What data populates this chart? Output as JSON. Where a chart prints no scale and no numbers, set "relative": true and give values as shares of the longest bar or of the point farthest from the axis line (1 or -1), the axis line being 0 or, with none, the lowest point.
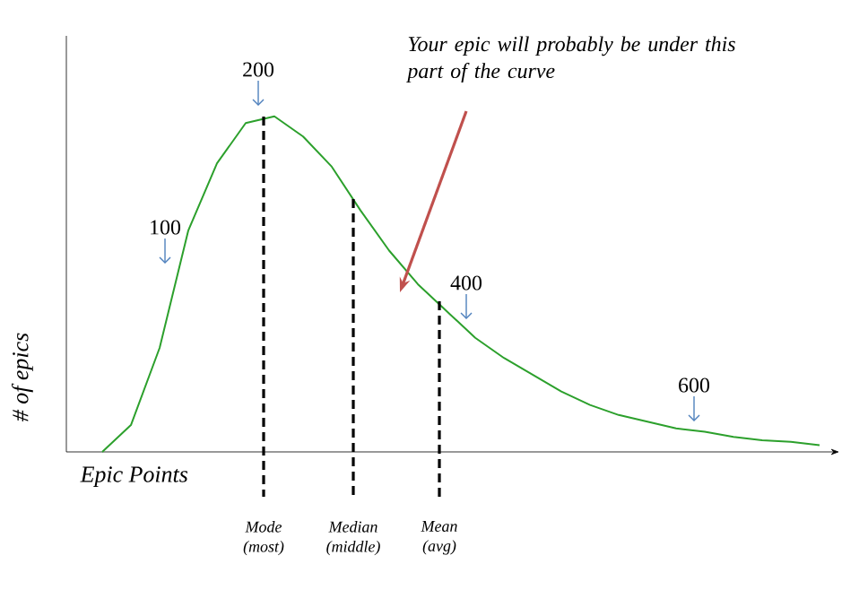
{
  "chart_data": {
    "type": "line",
    "relative": true,
    "xlabel": "Epic Points",
    "ylabel": "# of epics",
    "categories": [
      null,
      null,
      null,
      null,
      null,
      null,
      null,
      null,
      null,
      null,
      null,
      null,
      null,
      null,
      null,
      null,
      null,
      null,
      null,
      null,
      null,
      null,
      null,
      null,
      null,
      null
    ],
    "series": [
      {
        "color": "#2ca02c",
        "values": [
          0,
          0.08,
          0.31,
          0.66,
          0.86,
          0.98,
          1,
          0.94,
          0.85,
          0.72,
          0.6,
          0.5,
          0.42,
          0.34,
          0.28,
          0.23,
          0.18,
          0.14,
          0.11,
          0.09,
          0.07,
          0.06,
          0.045,
          0.035,
          0.03,
          0.02
        ]
      }
    ],
    "annotations": [
      "100",
      "200",
      "400",
      "600",
      "Your epic will probably be under this part of the curve",
      "Mode (most)",
      "Median (middle)",
      "Mean (avg)"
    ]
  }
}
